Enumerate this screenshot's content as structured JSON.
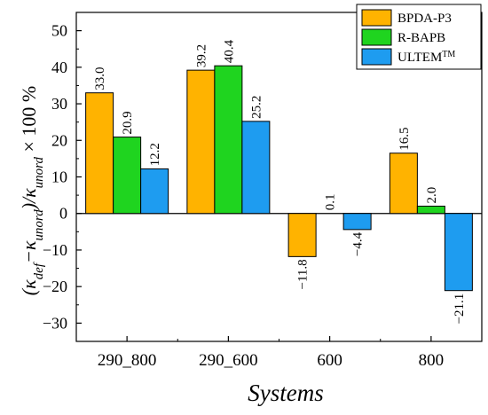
{
  "chart_data": {
    "type": "bar",
    "categories": [
      "290_800",
      "290_600",
      "600",
      "800"
    ],
    "series": [
      {
        "name": "BPDA-P3",
        "values": [
          33.0,
          39.2,
          -11.8,
          16.5
        ],
        "labels": [
          "33.0",
          "39.2",
          "−11.8",
          "16.5"
        ],
        "color": "#FFB300"
      },
      {
        "name": "R-BAPB",
        "values": [
          20.9,
          40.4,
          0.1,
          2.0
        ],
        "labels": [
          "20.9",
          "40.4",
          "0.1",
          "2.0"
        ],
        "color": "#1FD41F"
      },
      {
        "name": "ULTEM",
        "name_sup": "TM",
        "values": [
          12.2,
          25.2,
          -4.4,
          -21.1
        ],
        "labels": [
          "12.2",
          "25.2",
          "−4.4",
          "−21.1"
        ],
        "color": "#1E9CF0"
      }
    ],
    "xlabel": "Systems",
    "ylabel": {
      "parts": [
        {
          "text": "(κ"
        },
        {
          "text": "def",
          "sub": true
        },
        {
          "text": "−κ"
        },
        {
          "text": "unord",
          "sub": true
        },
        {
          "text": ")/κ"
        },
        {
          "text": "unord",
          "sub": true
        },
        {
          "text": " × 100 %",
          "upright": true
        }
      ]
    },
    "ylim": [
      -35,
      55
    ],
    "yticks": [
      -30,
      -20,
      -10,
      0,
      10,
      20,
      30,
      40,
      50
    ],
    "ytick_labels": [
      "−30",
      "−20",
      "−10",
      "0",
      "10",
      "20",
      "30",
      "40",
      "50"
    ],
    "legend_position": "top-right",
    "grid": false,
    "zero_line": true
  }
}
